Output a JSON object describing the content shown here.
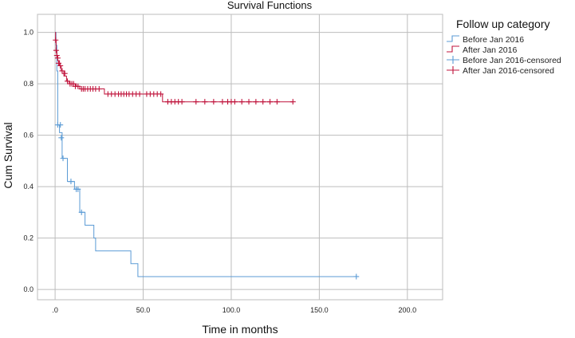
{
  "chart_data": {
    "type": "line",
    "title": "Survival Functions",
    "xlabel": "Time in months",
    "ylabel": "Cum Survival",
    "xlim": [
      -10,
      220
    ],
    "ylim": [
      -0.04,
      1.07
    ],
    "xticks": [
      0,
      50,
      100,
      150,
      200
    ],
    "xtick_labels": [
      ".0",
      "50.0",
      "100.0",
      "150.0",
      "200.0"
    ],
    "yticks": [
      0.0,
      0.2,
      0.4,
      0.6,
      0.8,
      1.0
    ],
    "ytick_labels": [
      "0.0",
      "0.2",
      "0.4",
      "0.6",
      "0.8",
      "1.0"
    ],
    "grid": true,
    "legend_title": "Follow up category",
    "legend_position": "right",
    "legend": [
      {
        "label": "Before Jan 2016",
        "kind": "step",
        "color": "#5b9bd5"
      },
      {
        "label": "After Jan 2016",
        "kind": "step",
        "color": "#c0143c"
      },
      {
        "label": "Before Jan 2016-censored",
        "kind": "censor",
        "color": "#5b9bd5"
      },
      {
        "label": "After Jan 2016-censored",
        "kind": "censor",
        "color": "#c0143c"
      }
    ],
    "series": [
      {
        "name": "Before Jan 2016",
        "color": "#5b9bd5",
        "steps": [
          [
            0,
            1.0
          ],
          [
            0.5,
            0.95
          ],
          [
            1.0,
            0.85
          ],
          [
            1.5,
            0.64
          ],
          [
            2.5,
            0.61
          ],
          [
            4.0,
            0.51
          ],
          [
            7.0,
            0.42
          ],
          [
            11.0,
            0.39
          ],
          [
            14.0,
            0.3
          ],
          [
            17.0,
            0.25
          ],
          [
            22.0,
            0.2
          ],
          [
            23.0,
            0.15
          ],
          [
            43.0,
            0.1
          ],
          [
            47.0,
            0.05
          ],
          [
            171.0,
            0.05
          ]
        ],
        "censored": [
          [
            1.5,
            0.64
          ],
          [
            3.0,
            0.64
          ],
          [
            3.5,
            0.59
          ],
          [
            4.5,
            0.51
          ],
          [
            9.0,
            0.42
          ],
          [
            12.0,
            0.39
          ],
          [
            13.0,
            0.39
          ],
          [
            15.0,
            0.3
          ],
          [
            171.0,
            0.05
          ]
        ]
      },
      {
        "name": "After Jan 2016",
        "color": "#c0143c",
        "steps": [
          [
            0,
            1.0
          ],
          [
            0.3,
            0.97
          ],
          [
            0.6,
            0.93
          ],
          [
            1.0,
            0.91
          ],
          [
            1.5,
            0.89
          ],
          [
            2.5,
            0.87
          ],
          [
            3.5,
            0.85
          ],
          [
            5.0,
            0.83
          ],
          [
            6.5,
            0.81
          ],
          [
            8.0,
            0.8
          ],
          [
            12.0,
            0.79
          ],
          [
            14.0,
            0.78
          ],
          [
            28.0,
            0.76
          ],
          [
            61.0,
            0.73
          ],
          [
            135.0,
            0.73
          ]
        ],
        "censored": [
          [
            0.3,
            0.97
          ],
          [
            0.6,
            0.93
          ],
          [
            1.0,
            0.91
          ],
          [
            1.5,
            0.9
          ],
          [
            2.0,
            0.88
          ],
          [
            3.0,
            0.87
          ],
          [
            4.0,
            0.85
          ],
          [
            5.5,
            0.84
          ],
          [
            7.0,
            0.81
          ],
          [
            8.5,
            0.8
          ],
          [
            9.5,
            0.8
          ],
          [
            10.5,
            0.8
          ],
          [
            11.5,
            0.79
          ],
          [
            13.0,
            0.79
          ],
          [
            15.0,
            0.78
          ],
          [
            16.0,
            0.78
          ],
          [
            17.0,
            0.78
          ],
          [
            18.5,
            0.78
          ],
          [
            20.0,
            0.78
          ],
          [
            21.5,
            0.78
          ],
          [
            23.0,
            0.78
          ],
          [
            25.0,
            0.78
          ],
          [
            30.0,
            0.76
          ],
          [
            32.0,
            0.76
          ],
          [
            34.0,
            0.76
          ],
          [
            36.0,
            0.76
          ],
          [
            37.5,
            0.76
          ],
          [
            39.0,
            0.76
          ],
          [
            40.5,
            0.76
          ],
          [
            42.0,
            0.76
          ],
          [
            44.0,
            0.76
          ],
          [
            46.0,
            0.76
          ],
          [
            48.0,
            0.76
          ],
          [
            52.0,
            0.76
          ],
          [
            54.0,
            0.76
          ],
          [
            56.0,
            0.76
          ],
          [
            58.0,
            0.76
          ],
          [
            60.0,
            0.76
          ],
          [
            64.0,
            0.73
          ],
          [
            66.0,
            0.73
          ],
          [
            68.0,
            0.73
          ],
          [
            70.0,
            0.73
          ],
          [
            72.0,
            0.73
          ],
          [
            80.0,
            0.73
          ],
          [
            85.0,
            0.73
          ],
          [
            90.0,
            0.73
          ],
          [
            95.0,
            0.73
          ],
          [
            98.0,
            0.73
          ],
          [
            100.0,
            0.73
          ],
          [
            102.0,
            0.73
          ],
          [
            106.0,
            0.73
          ],
          [
            110.0,
            0.73
          ],
          [
            114.0,
            0.73
          ],
          [
            118.0,
            0.73
          ],
          [
            122.0,
            0.73
          ],
          [
            126.0,
            0.73
          ],
          [
            135.0,
            0.73
          ]
        ]
      }
    ]
  }
}
